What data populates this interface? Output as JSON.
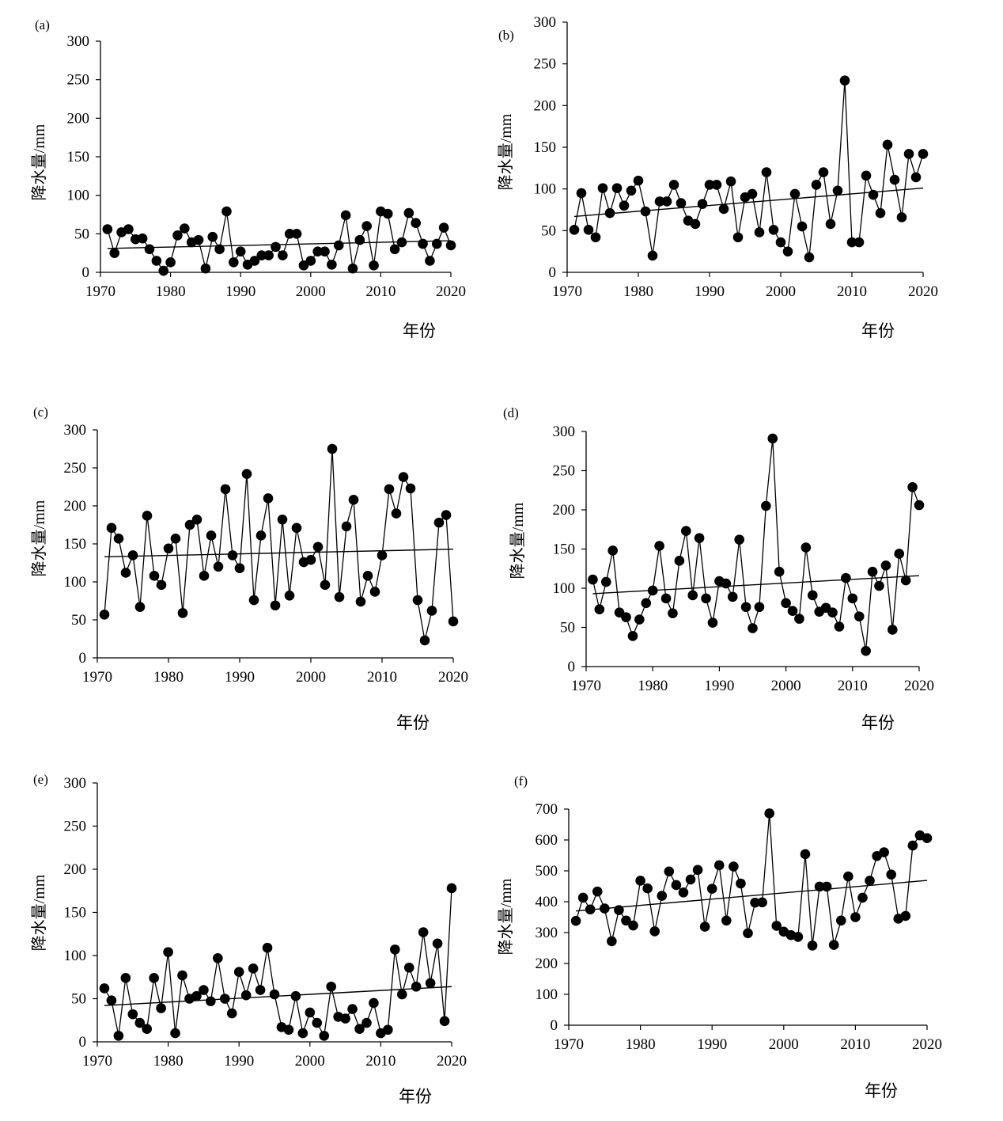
{
  "figure": {
    "ylabel": "降水量/mm",
    "xlabel": "年份"
  },
  "chart_data": [
    {
      "type": "scatter",
      "panel": "(a)",
      "ylabel": "降水量/mm",
      "xlabel": "年份",
      "xlim": [
        1970,
        2020
      ],
      "ylim": [
        0,
        300
      ],
      "xticks": [
        1970,
        1980,
        1990,
        2000,
        2010,
        2020
      ],
      "yticks": [
        0,
        50,
        100,
        150,
        200,
        250,
        300
      ],
      "series": [
        {
          "x": [
            1971,
            1972,
            1973,
            1974,
            1975,
            1976,
            1977,
            1978,
            1979,
            1980,
            1981,
            1982,
            1983,
            1984,
            1985,
            1986,
            1987,
            1988,
            1989,
            1990,
            1991,
            1992,
            1993,
            1994,
            1995,
            1996,
            1997,
            1998,
            1999,
            2000,
            2001,
            2002,
            2003,
            2004,
            2005,
            2006,
            2007,
            2008,
            2009,
            2010,
            2011,
            2012,
            2013,
            2014,
            2015,
            2016,
            2017,
            2018,
            2019,
            2020
          ],
          "y": [
            56,
            25,
            52,
            56,
            43,
            44,
            30,
            15,
            2,
            13,
            48,
            57,
            39,
            42,
            5,
            46,
            30,
            79,
            13,
            27,
            10,
            15,
            22,
            22,
            33,
            22,
            50,
            50,
            9,
            15,
            27,
            27,
            10,
            35,
            74,
            5,
            42,
            60,
            9,
            79,
            76,
            30,
            39,
            77,
            64,
            37,
            15,
            37,
            58,
            35
          ]
        }
      ],
      "trend": {
        "x": [
          1971,
          2020
        ],
        "y": [
          31,
          41
        ]
      }
    },
    {
      "type": "scatter",
      "panel": "(b)",
      "ylabel": "降水量/mm",
      "xlabel": "年份",
      "xlim": [
        1970,
        2020
      ],
      "ylim": [
        0,
        300
      ],
      "xticks": [
        1970,
        1980,
        1990,
        2000,
        2010,
        2020
      ],
      "yticks": [
        0,
        50,
        100,
        150,
        200,
        250,
        300
      ],
      "series": [
        {
          "x": [
            1971,
            1972,
            1973,
            1974,
            1975,
            1976,
            1977,
            1978,
            1979,
            1980,
            1981,
            1982,
            1983,
            1984,
            1985,
            1986,
            1987,
            1988,
            1989,
            1990,
            1991,
            1992,
            1993,
            1994,
            1995,
            1996,
            1997,
            1998,
            1999,
            2000,
            2001,
            2002,
            2003,
            2004,
            2005,
            2006,
            2007,
            2008,
            2009,
            2010,
            2011,
            2012,
            2013,
            2014,
            2015,
            2016,
            2017,
            2018,
            2019,
            2020
          ],
          "y": [
            51,
            95,
            51,
            42,
            101,
            71,
            101,
            80,
            98,
            110,
            73,
            20,
            85,
            85,
            105,
            83,
            62,
            58,
            82,
            105,
            105,
            76,
            109,
            42,
            90,
            94,
            48,
            120,
            51,
            36,
            25,
            94,
            55,
            18,
            105,
            120,
            58,
            98,
            230,
            36,
            36,
            116,
            93,
            71,
            153,
            111,
            66,
            142,
            114,
            142
          ]
        }
      ],
      "trend": {
        "x": [
          1971,
          2020
        ],
        "y": [
          67,
          101
        ]
      }
    },
    {
      "type": "scatter",
      "panel": "(c)",
      "ylabel": "降水量/mm",
      "xlabel": "年份",
      "xlim": [
        1970,
        2020
      ],
      "ylim": [
        0,
        300
      ],
      "xticks": [
        1970,
        1980,
        1990,
        2000,
        2010,
        2020
      ],
      "yticks": [
        0,
        50,
        100,
        150,
        200,
        250,
        300
      ],
      "series": [
        {
          "x": [
            1971,
            1972,
            1973,
            1974,
            1975,
            1976,
            1977,
            1978,
            1979,
            1980,
            1981,
            1982,
            1983,
            1984,
            1985,
            1986,
            1987,
            1988,
            1989,
            1990,
            1991,
            1992,
            1993,
            1994,
            1995,
            1996,
            1997,
            1998,
            1999,
            2000,
            2001,
            2002,
            2003,
            2004,
            2005,
            2006,
            2007,
            2008,
            2009,
            2010,
            2011,
            2012,
            2013,
            2014,
            2015,
            2016,
            2017,
            2018,
            2019,
            2020
          ],
          "y": [
            57,
            171,
            157,
            112,
            135,
            67,
            187,
            108,
            96,
            144,
            157,
            59,
            175,
            182,
            108,
            161,
            120,
            222,
            135,
            118,
            242,
            76,
            161,
            210,
            69,
            182,
            82,
            171,
            126,
            129,
            146,
            96,
            275,
            80,
            173,
            208,
            74,
            108,
            87,
            135,
            222,
            190,
            238,
            223,
            76,
            23,
            62,
            178,
            188,
            48
          ]
        }
      ],
      "trend": {
        "x": [
          1971,
          2020
        ],
        "y": [
          133,
          143
        ]
      }
    },
    {
      "type": "scatter",
      "panel": "(d)",
      "ylabel": "降水量/mm",
      "xlabel": "年份",
      "xlim": [
        1970,
        2020
      ],
      "ylim": [
        0,
        300
      ],
      "xticks": [
        1970,
        1980,
        1990,
        2000,
        2010,
        2020
      ],
      "yticks": [
        0,
        50,
        100,
        150,
        200,
        250,
        300
      ],
      "series": [
        {
          "x": [
            1971,
            1972,
            1973,
            1974,
            1975,
            1976,
            1977,
            1978,
            1979,
            1980,
            1981,
            1982,
            1983,
            1984,
            1985,
            1986,
            1987,
            1988,
            1989,
            1990,
            1991,
            1992,
            1993,
            1994,
            1995,
            1996,
            1997,
            1998,
            1999,
            2000,
            2001,
            2002,
            2003,
            2004,
            2005,
            2006,
            2007,
            2008,
            2009,
            2010,
            2011,
            2012,
            2013,
            2014,
            2015,
            2016,
            2017,
            2018,
            2019,
            2020
          ],
          "y": [
            111,
            73,
            108,
            148,
            69,
            63,
            39,
            60,
            81,
            97,
            154,
            87,
            68,
            135,
            173,
            91,
            164,
            87,
            56,
            109,
            106,
            89,
            162,
            76,
            49,
            76,
            205,
            291,
            121,
            81,
            71,
            61,
            152,
            91,
            70,
            75,
            69,
            51,
            113,
            87,
            64,
            20,
            121,
            103,
            129,
            47,
            144,
            110,
            229,
            206
          ]
        }
      ],
      "trend": {
        "x": [
          1971,
          2020
        ],
        "y": [
          93,
          116
        ]
      }
    },
    {
      "type": "scatter",
      "panel": "(e)",
      "ylabel": "降水量/mm",
      "xlabel": "年份",
      "xlim": [
        1970,
        2020
      ],
      "ylim": [
        0,
        300
      ],
      "xticks": [
        1970,
        1980,
        1990,
        2000,
        2010,
        2020
      ],
      "yticks": [
        0,
        50,
        100,
        150,
        200,
        250,
        300
      ],
      "series": [
        {
          "x": [
            1971,
            1972,
            1973,
            1974,
            1975,
            1976,
            1977,
            1978,
            1979,
            1980,
            1981,
            1982,
            1983,
            1984,
            1985,
            1986,
            1987,
            1988,
            1989,
            1990,
            1991,
            1992,
            1993,
            1994,
            1995,
            1996,
            1997,
            1998,
            1999,
            2000,
            2001,
            2002,
            2003,
            2004,
            2005,
            2006,
            2007,
            2008,
            2009,
            2010,
            2011,
            2012,
            2013,
            2014,
            2015,
            2016,
            2017,
            2018,
            2019,
            2020
          ],
          "y": [
            62,
            48,
            7,
            74,
            32,
            22,
            15,
            74,
            39,
            104,
            10,
            77,
            50,
            53,
            60,
            47,
            97,
            50,
            33,
            81,
            54,
            85,
            60,
            109,
            55,
            17,
            14,
            53,
            10,
            34,
            22,
            7,
            64,
            29,
            27,
            38,
            15,
            22,
            45,
            10,
            14,
            107,
            55,
            86,
            64,
            127,
            68,
            114,
            24,
            178
          ]
        }
      ],
      "trend": {
        "x": [
          1971,
          2020
        ],
        "y": [
          42,
          64
        ]
      }
    },
    {
      "type": "scatter",
      "panel": "(f)",
      "ylabel": "降水量/mm",
      "xlabel": "年份",
      "xlim": [
        1970,
        2020
      ],
      "ylim": [
        0,
        700
      ],
      "xticks": [
        1970,
        1980,
        1990,
        2000,
        2010,
        2020
      ],
      "yticks": [
        0,
        100,
        200,
        300,
        400,
        500,
        600,
        700
      ],
      "series": [
        {
          "x": [
            1971,
            1972,
            1973,
            1974,
            1975,
            1976,
            1977,
            1978,
            1979,
            1980,
            1981,
            1982,
            1983,
            1984,
            1985,
            1986,
            1987,
            1988,
            1989,
            1990,
            1991,
            1992,
            1993,
            1994,
            1995,
            1996,
            1997,
            1998,
            1999,
            2000,
            2001,
            2002,
            2003,
            2004,
            2005,
            2006,
            2007,
            2008,
            2009,
            2010,
            2011,
            2012,
            2013,
            2014,
            2015,
            2016,
            2017,
            2018,
            2019,
            2020
          ],
          "y": [
            338,
            413,
            375,
            433,
            378,
            272,
            373,
            339,
            323,
            468,
            443,
            304,
            419,
            498,
            454,
            430,
            472,
            503,
            319,
            442,
            518,
            339,
            514,
            459,
            298,
            397,
            398,
            686,
            322,
            303,
            292,
            286,
            554,
            258,
            449,
            449,
            260,
            339,
            482,
            350,
            413,
            468,
            548,
            560,
            488,
            345,
            354,
            582,
            615,
            606
          ]
        }
      ],
      "trend": {
        "x": [
          1971,
          2020
        ],
        "y": [
          370,
          469
        ]
      }
    }
  ]
}
